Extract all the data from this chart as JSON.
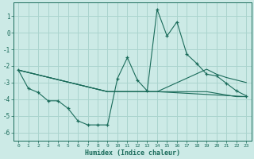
{
  "xlabel": "Humidex (Indice chaleur)",
  "bg_color": "#cceae6",
  "grid_color": "#aad4ce",
  "line_color": "#1a6b5a",
  "xlim": [
    -0.5,
    23.5
  ],
  "ylim": [
    -6.5,
    1.8
  ],
  "yticks": [
    1,
    0,
    -1,
    -2,
    -3,
    -4,
    -5,
    -6
  ],
  "xticks": [
    0,
    1,
    2,
    3,
    4,
    5,
    6,
    7,
    8,
    9,
    10,
    11,
    12,
    13,
    14,
    15,
    16,
    17,
    18,
    19,
    20,
    21,
    22,
    23
  ],
  "line1_x": [
    0,
    1,
    2,
    3,
    4,
    5,
    6,
    7,
    8,
    9,
    10,
    11,
    12,
    13,
    14,
    15,
    16,
    17,
    18,
    19,
    20,
    21,
    22,
    23
  ],
  "line1_y": [
    -2.25,
    -3.35,
    -3.6,
    -4.1,
    -4.1,
    -4.55,
    -5.3,
    -5.55,
    -5.55,
    -5.55,
    -2.75,
    -1.5,
    -2.85,
    -3.5,
    1.4,
    -0.2,
    0.65,
    -1.3,
    -1.85,
    -2.5,
    -2.6,
    -3.05,
    -3.5,
    -3.8
  ],
  "line2_x": [
    0,
    9,
    10,
    14,
    19,
    20,
    21,
    22,
    23
  ],
  "line2_y": [
    -2.25,
    -3.55,
    -3.55,
    -3.55,
    -2.2,
    -2.5,
    -2.7,
    -2.85,
    -3.0
  ],
  "line3_x": [
    0,
    9,
    10,
    14,
    19,
    20,
    21,
    22,
    23
  ],
  "line3_y": [
    -2.25,
    -3.55,
    -3.55,
    -3.55,
    -3.55,
    -3.65,
    -3.75,
    -3.85,
    -3.85
  ],
  "line4_x": [
    0,
    9,
    14,
    23
  ],
  "line4_y": [
    -2.25,
    -3.55,
    -3.55,
    -3.85
  ]
}
